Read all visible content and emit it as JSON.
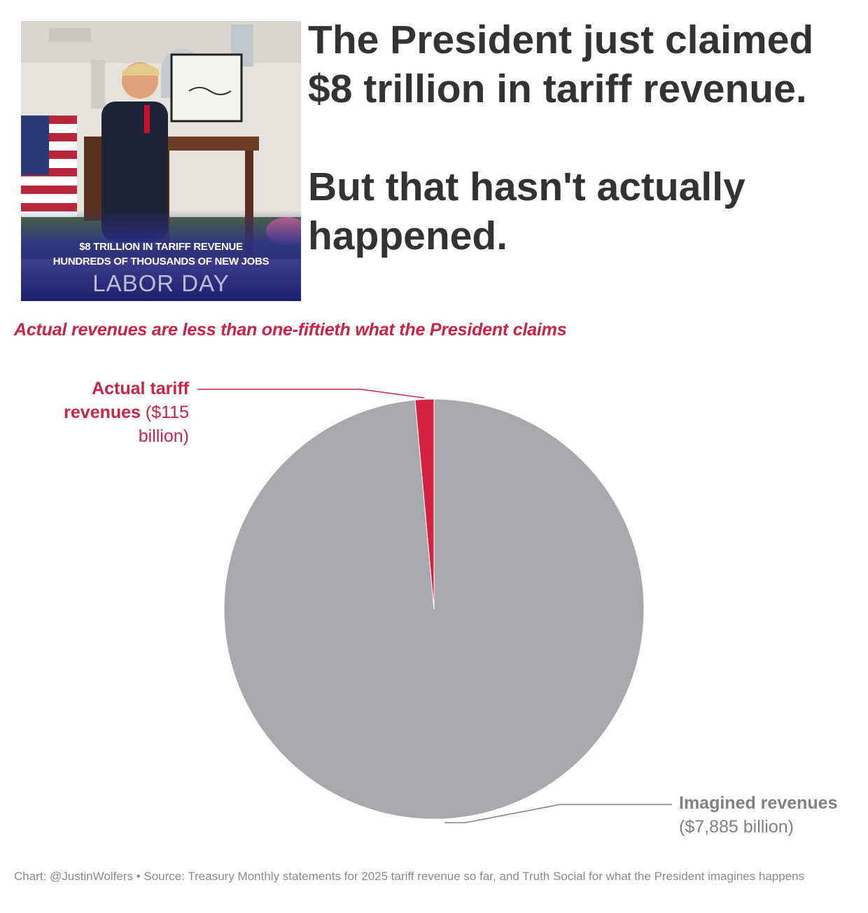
{
  "headline": {
    "line1": "The President just claimed",
    "line2": "$8 trillion in tariff revenue.",
    "line3": "But that hasn't actually",
    "line4": "happened."
  },
  "photo": {
    "caption_line1": "$8 TRILLION IN TARIFF REVENUE",
    "caption_line2": "HUNDREDS OF THOUSANDS OF NEW JOBS",
    "caption_line3": "LABOR DAY"
  },
  "chart_data": {
    "type": "pie",
    "subtitle": "Actual revenues are less than one-fiftieth what the President claims",
    "units": "billion",
    "slices": [
      {
        "name": "Actual tariff revenues",
        "value": 115,
        "value_label": "($115 billion)",
        "color": "#d42142"
      },
      {
        "name": "Imagined revenues",
        "value": 7885,
        "value_label": "($7,885 billion)",
        "color": "#a8a9ac"
      }
    ],
    "labels": {
      "actual_bold_1": "Actual tariff",
      "actual_bold_2": "revenues",
      "actual_val_1": "($115",
      "actual_val_2": "billion)",
      "imagined_bold": "Imagined revenues",
      "imagined_val": "($7,885 billion)"
    }
  },
  "footer": {
    "text": "Chart: @JustinWolfers • Source: Treasury Monthly statements for 2025 tariff revenue so far, and Truth Social for what the President imagines happens"
  },
  "colors": {
    "accent_red": "#cc2244",
    "headline_text": "#333333",
    "pie_gray": "#a8a9ac",
    "pie_red": "#d42142"
  }
}
